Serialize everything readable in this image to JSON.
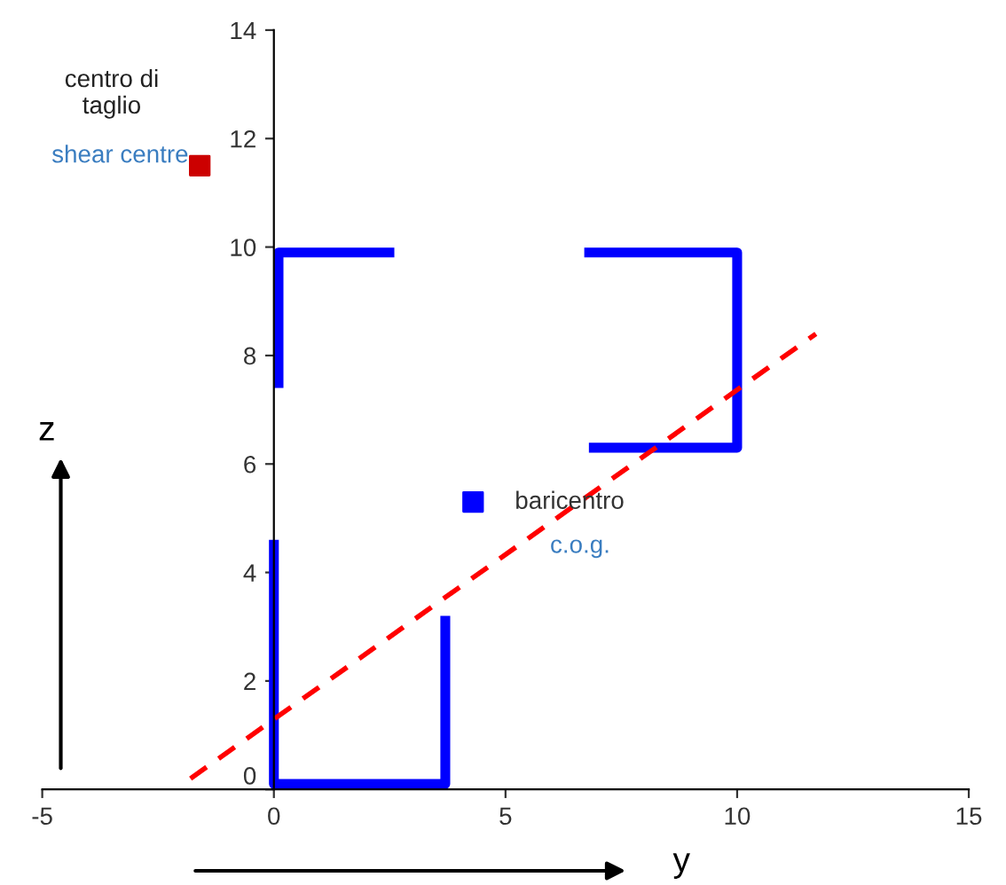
{
  "chart_data": {
    "type": "line",
    "xlabel": "y",
    "ylabel": "z",
    "xlim": [
      -5,
      15
    ],
    "ylim": [
      0,
      14
    ],
    "xticks": [
      -5,
      0,
      5,
      10,
      15
    ],
    "yticks": [
      0,
      2,
      4,
      6,
      8,
      10,
      12,
      14
    ],
    "grid": false,
    "series": [
      {
        "color": "#0000ff",
        "x": [
          0,
          0,
          3.7,
          3.7
        ],
        "values": [
          4.6,
          0.1,
          0.1,
          3.2
        ]
      },
      {
        "color": "#0000ff",
        "x": [
          2.6,
          0.1,
          0.1
        ],
        "values": [
          9.9,
          9.9,
          7.4
        ]
      },
      {
        "color": "#0000ff",
        "x": [
          6.7,
          10,
          10,
          6.8
        ],
        "values": [
          9.9,
          9.9,
          6.3,
          6.3
        ]
      },
      {
        "color": "#ff0000",
        "line_style": "dashed",
        "x": [
          -1.8,
          11.7
        ],
        "values": [
          0.2,
          8.4
        ]
      },
      {
        "type": "scatter",
        "color": "#cc0000",
        "marker": "square",
        "x": [
          -1.6
        ],
        "values": [
          11.5
        ]
      },
      {
        "type": "scatter",
        "color": "#0000ff",
        "marker": "square",
        "x": [
          4.3
        ],
        "values": [
          5.3
        ]
      }
    ],
    "annotations": [
      "centro di\ntaglio",
      "shear centre",
      "baricentro",
      "c.o.g."
    ]
  }
}
